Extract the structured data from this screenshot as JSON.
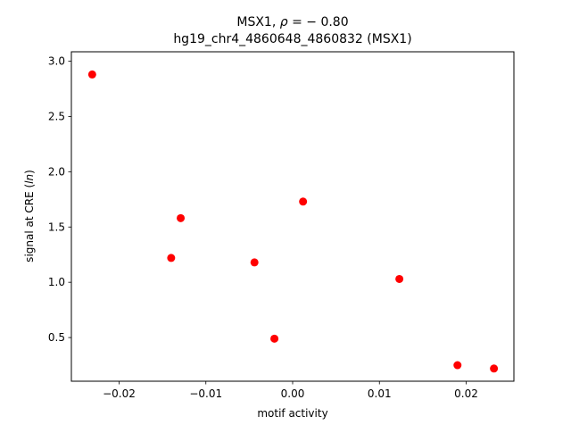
{
  "chart_data": {
    "type": "scatter",
    "title_line1_prefix": "MSX1, ",
    "title_line1_rho": "ρ",
    "title_line1_suffix": " = − 0.80",
    "title_line2": "hg19_chr4_4860648_4860832 (MSX1)",
    "xlabel": "motif activity",
    "ylabel_prefix": "signal at CRE (",
    "ylabel_italic": "ln",
    "ylabel_suffix": ")",
    "xlim": [
      -0.0255,
      0.0255
    ],
    "ylim": [
      0.105,
      3.085
    ],
    "x_ticks": [
      -0.02,
      -0.01,
      0.0,
      0.01,
      0.02
    ],
    "x_tick_labels": [
      "−0.02",
      "−0.01",
      "0.00",
      "0.01",
      "0.02"
    ],
    "y_ticks": [
      0.5,
      1.0,
      1.5,
      2.0,
      2.5,
      3.0
    ],
    "y_tick_labels": [
      "0.5",
      "1.0",
      "1.5",
      "2.0",
      "2.5",
      "3.0"
    ],
    "grid": false,
    "marker_color": "#ff0000",
    "x": [
      -0.0231,
      -0.014,
      -0.0129,
      -0.0044,
      -0.0021,
      0.0012,
      0.0123,
      0.019,
      0.0232
    ],
    "y": [
      2.88,
      1.22,
      1.58,
      1.18,
      0.49,
      1.73,
      1.03,
      0.25,
      0.22
    ]
  }
}
